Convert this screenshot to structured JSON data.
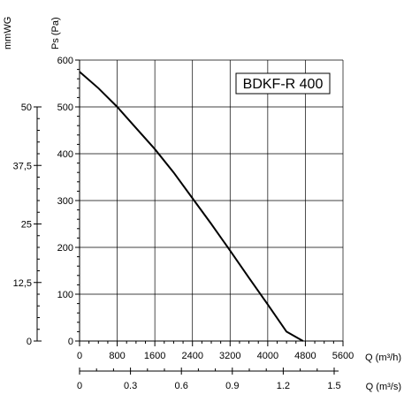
{
  "chart_data": {
    "type": "line",
    "title": "BDKF-R 400",
    "ylabel": "Ps (Pa)",
    "ylabel_secondary": "mmWG",
    "xlabel": "Q (m³/h)",
    "xlabel_secondary": "Q (m³/s)",
    "xlim": [
      0,
      5600
    ],
    "ylim": [
      0,
      600
    ],
    "x_ticks": [
      "0",
      "800",
      "1600",
      "2400",
      "3200",
      "4000",
      "4800",
      "5600"
    ],
    "x_tick_values": [
      0,
      800,
      1600,
      2400,
      3200,
      4000,
      4800,
      5600
    ],
    "y_ticks": [
      "0",
      "100",
      "200",
      "300",
      "400",
      "500",
      "600"
    ],
    "y_tick_values": [
      0,
      100,
      200,
      300,
      400,
      500,
      600
    ],
    "y2_ticks": [
      "0",
      "12,5",
      "25",
      "37,5",
      "50"
    ],
    "y2_tick_values": [
      0,
      12.5,
      25,
      37.5,
      50
    ],
    "x2_ticks": [
      "0",
      "0.3",
      "0.6",
      "0.9",
      "1.2",
      "1.5"
    ],
    "x2_tick_values": [
      0,
      0.3,
      0.6,
      0.9,
      1.2,
      1.5
    ],
    "grid": true,
    "series": [
      {
        "x": [
          0,
          400,
          800,
          1200,
          1600,
          2000,
          2400,
          2800,
          3200,
          3600,
          4000,
          4400,
          4750
        ],
        "y": [
          575,
          540,
          500,
          455,
          410,
          360,
          305,
          250,
          193,
          135,
          78,
          20,
          0
        ]
      }
    ]
  }
}
